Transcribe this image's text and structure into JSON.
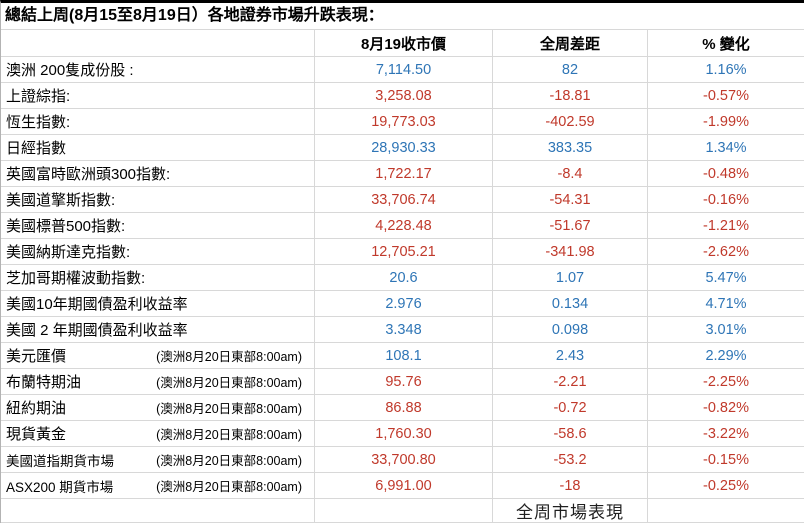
{
  "title": "總結上周(8月15至8月19日）各地證券市場升跌表現：",
  "columns": [
    "8月19收市價",
    "全周差距",
    "% 變化"
  ],
  "footer": "全周市場表現",
  "colors": {
    "up": "#2E75B6",
    "down": "#C0392B"
  },
  "rows": [
    {
      "label": "澳洲 200隻成份股 :",
      "note": "",
      "close": "7,114.50",
      "change": "82",
      "pct": "1.16%",
      "dir": "up"
    },
    {
      "label": "上證綜指:",
      "note": "",
      "close": "3,258.08",
      "change": "-18.81",
      "pct": "-0.57%",
      "dir": "down"
    },
    {
      "label": "恆生指數:",
      "note": "",
      "close": "19,773.03",
      "change": "-402.59",
      "pct": "-1.99%",
      "dir": "down"
    },
    {
      "label": "日經指數",
      "note": "",
      "close": "28,930.33",
      "change": "383.35",
      "pct": "1.34%",
      "dir": "up"
    },
    {
      "label": "英國富時歐洲頭300指數:",
      "note": "",
      "close": "1,722.17",
      "change": "-8.4",
      "pct": "-0.48%",
      "dir": "down"
    },
    {
      "label": "美國道擎斯指數:",
      "note": "",
      "close": "33,706.74",
      "change": "-54.31",
      "pct": "-0.16%",
      "dir": "down"
    },
    {
      "label": "美國標普500指數:",
      "note": "",
      "close": "4,228.48",
      "change": "-51.67",
      "pct": "-1.21%",
      "dir": "down"
    },
    {
      "label": "美國納斯達克指數:",
      "note": "",
      "close": "12,705.21",
      "change": "-341.98",
      "pct": "-2.62%",
      "dir": "down"
    },
    {
      "label": "芝加哥期權波動指數:",
      "note": "",
      "close": "20.6",
      "change": "1.07",
      "pct": "5.47%",
      "dir": "up"
    },
    {
      "label": "美國10年期國債盈利收益率",
      "note": "",
      "close": "2.976",
      "change": "0.134",
      "pct": "4.71%",
      "dir": "up"
    },
    {
      "label": "美國 2 年期國債盈利收益率",
      "note": "",
      "close": "3.348",
      "change": "0.098",
      "pct": "3.01%",
      "dir": "up"
    },
    {
      "label": "美元匯價",
      "note": "(澳洲8月20日東部8:00am)",
      "close": "108.1",
      "change": "2.43",
      "pct": "2.29%",
      "dir": "up"
    },
    {
      "label": "布蘭特期油",
      "note": "(澳洲8月20日東部8:00am)",
      "close": "95.76",
      "change": "-2.21",
      "pct": "-2.25%",
      "dir": "down"
    },
    {
      "label": "紐約期油",
      "note": "(澳洲8月20日東部8:00am)",
      "close": "86.88",
      "change": "-0.72",
      "pct": "-0.82%",
      "dir": "down"
    },
    {
      "label": "現貨黃金",
      "note": "(澳洲8月20日東部8:00am)",
      "close": "1,760.30",
      "change": "-58.6",
      "pct": "-3.22%",
      "dir": "down"
    },
    {
      "label": "美國道指期貨市場",
      "note": "(澳洲8月20日東部8:00am)",
      "close": "33,700.80",
      "change": "-53.2",
      "pct": "-0.15%",
      "dir": "down"
    },
    {
      "label": "ASX200 期貨市場",
      "note": "(澳洲8月20日東部8:00am)",
      "close": "6,991.00",
      "change": "-18",
      "pct": "-0.25%",
      "dir": "down"
    }
  ]
}
